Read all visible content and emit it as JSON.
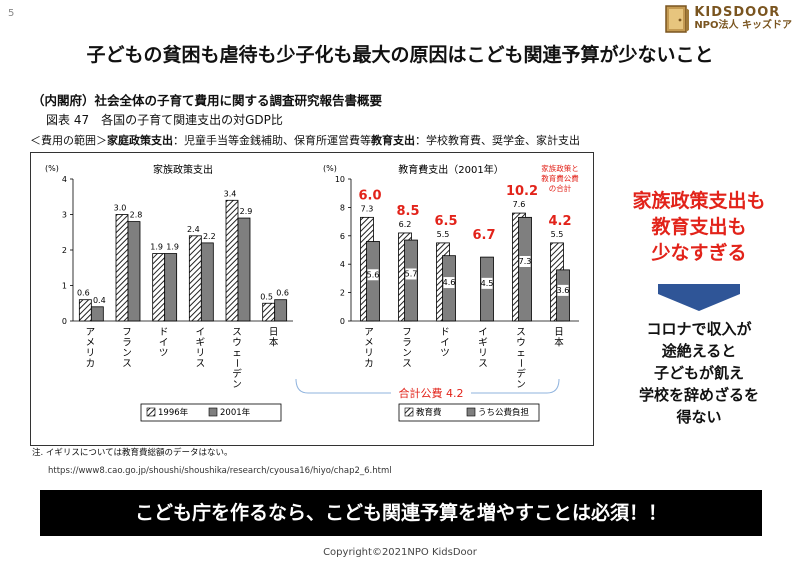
{
  "page_number": "5",
  "logo": {
    "line1": "KIDSDOOR",
    "line2": "NPO法人 キッズドア"
  },
  "title": "子どもの貧困も虐待も少子化も最大の原因はこども関連予算が少ないこと",
  "subtitle": "（内閣府）社会全体の子育て費用に関する調査研究報告書概要",
  "figure_title": "図表 47　各国の子育て関連支出の対GDP比",
  "scope": {
    "prefix": "＜費用の範囲＞",
    "family_label": "家庭政策支出",
    "family_text": "：児童手当等金銭補助、保育所運営費等",
    "edu_label": "教育支出",
    "edu_text": "：学校教育費、奨学金、家計支出"
  },
  "chart_data": [
    {
      "type": "bar",
      "title": "家族政策支出",
      "ylabel": "(%)",
      "ylim": [
        0,
        4
      ],
      "yticks": [
        "0",
        "1",
        "2",
        "3",
        "4"
      ],
      "categories": [
        "アメリカ",
        "フランス",
        "ドイツ",
        "イギリス",
        "スウェーデン",
        "日本"
      ],
      "series": [
        {
          "name": "1996年",
          "values": [
            0.6,
            3.0,
            1.9,
            2.4,
            3.4,
            0.5
          ],
          "labels": [
            "0.6",
            "3.0",
            "1.9",
            "2.4",
            "3.4",
            "0.5"
          ]
        },
        {
          "name": "2001年",
          "values": [
            0.4,
            2.8,
            1.9,
            2.2,
            2.9,
            0.6
          ],
          "labels": [
            "0.4",
            "2.8",
            "1.9",
            "2.2",
            "2.9",
            "0.6"
          ]
        }
      ],
      "legend": "bottom"
    },
    {
      "type": "bar",
      "title": "教育費支出（2001年）",
      "ylabel": "(%)",
      "ylim": [
        0,
        10
      ],
      "yticks": [
        "0",
        "2",
        "4",
        "6",
        "8",
        "10"
      ],
      "categories": [
        "アメリカ",
        "フランス",
        "ドイツ",
        "イギリス",
        "スウェーデン",
        "日本"
      ],
      "series": [
        {
          "name": "教育費",
          "values": [
            7.3,
            6.2,
            5.5,
            null,
            7.6,
            5.5
          ],
          "labels": [
            "7.3",
            "6.2",
            "5.5",
            "",
            "7.6",
            "5.5"
          ]
        },
        {
          "name": "うち公費負担",
          "values": [
            5.6,
            5.7,
            4.6,
            4.5,
            7.3,
            3.6
          ],
          "labels": [
            "5.6",
            "5.7",
            "4.6",
            "4.5",
            "7.3",
            "3.6"
          ]
        }
      ],
      "totals_red": [
        "6.0",
        "8.5",
        "6.5",
        "6.7",
        "10.2",
        "4.2"
      ],
      "japan_note": "家族政策と教育費公費の合計",
      "legend": "bottom"
    }
  ],
  "bracket_label": "合計公費 4.2",
  "note": "注. イギリスについては教育費総額のデータはない。",
  "source": "https://www8.cao.go.jp/shoushi/shoushika/research/cyousa16/hiyo/chap2_6.html",
  "right_red_lines": [
    "家族政策支出も",
    "教育支出も",
    "少なすぎる"
  ],
  "right_black_lines": [
    "コロナで収入が",
    "途絶えると",
    "子どもが飢え",
    "学校を辞めざるを",
    "得ない"
  ],
  "banner": "こども庁を作るなら、こども関連予算を増やすことは必須！！",
  "copyright": "Copyright©2021NPO KidsDoor",
  "colors": {
    "red": "#e2231a",
    "arrow": "#2f5597",
    "banner_bg": "#000000",
    "logo_brown": "#7a5520"
  }
}
